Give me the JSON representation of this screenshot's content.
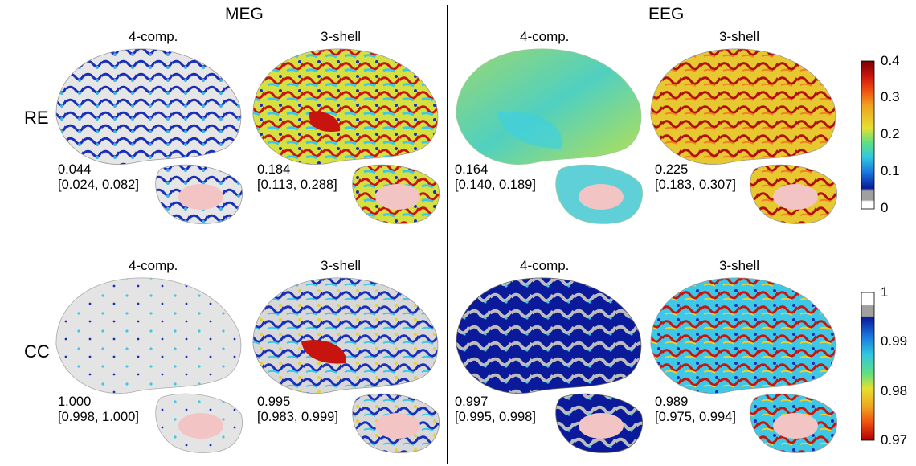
{
  "modalities": [
    "MEG",
    "EEG"
  ],
  "rows": [
    "RE",
    "CC"
  ],
  "panels": [
    {
      "model": "4-comp.",
      "value": "0.044",
      "ci": "[0.024, 0.082]"
    },
    {
      "model": "3-shell",
      "value": "0.184",
      "ci": "[0.113, 0.288]"
    },
    {
      "model": "4-comp.",
      "value": "0.164",
      "ci": "[0.140, 0.189]"
    },
    {
      "model": "3-shell",
      "value": "0.225",
      "ci": "[0.183, 0.307]"
    },
    {
      "model": "4-comp.",
      "value": "1.000",
      "ci": "[0.998, 1.000]"
    },
    {
      "model": "3-shell",
      "value": "0.995",
      "ci": "[0.983, 0.999]"
    },
    {
      "model": "4-comp.",
      "value": "0.997",
      "ci": "[0.995, 0.998]"
    },
    {
      "model": "3-shell",
      "value": "0.989",
      "ci": "[0.975, 0.994]"
    }
  ],
  "colorbars": [
    {
      "ticks": [
        "0.4",
        "0.3",
        "0.2",
        "0.1",
        "0"
      ]
    },
    {
      "ticks": [
        "1",
        "0.99",
        "0.98",
        "0.97"
      ]
    }
  ],
  "colors": {
    "low_blue": "#0a1a9a",
    "mid_cyan": "#3cc8e6",
    "yellow": "#f0e23a",
    "red": "#c8140e",
    "gray_cortex": "#c8c8c8",
    "pink_callosum": "#f2c4c4"
  }
}
